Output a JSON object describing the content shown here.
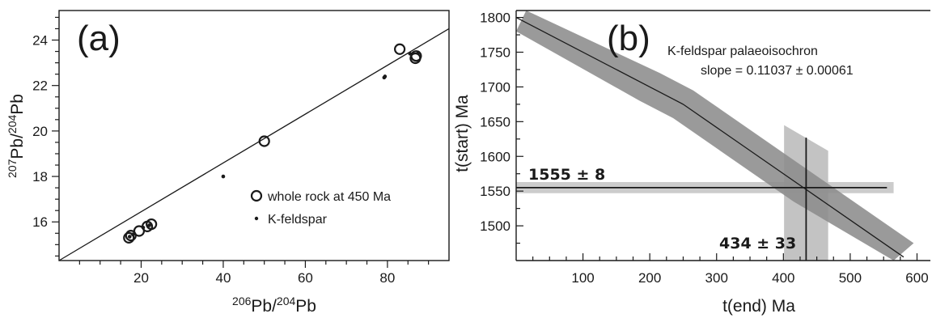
{
  "chart_data": [
    {
      "panel": "(a)",
      "type": "scatter",
      "xlabel": "206Pb/204Pb",
      "ylabel": "207Pb/204Pb",
      "xlim": [
        0,
        95
      ],
      "ylim": [
        14.3,
        25.3
      ],
      "xticks": [
        "20",
        "40",
        "60",
        "80"
      ],
      "yticks": [
        "16",
        "18",
        "20",
        "22",
        "24"
      ],
      "fit_line": {
        "x": [
          0,
          95
        ],
        "y": [
          14.3,
          24.5
        ]
      },
      "series": [
        {
          "name": "whole rock at 450 Ma",
          "marker": "open-circle",
          "x": [
            17.0,
            17.5,
            19.5,
            21.5,
            22.5,
            50.0,
            83.0,
            86.8,
            87.0
          ],
          "y": [
            15.3,
            15.4,
            15.6,
            15.8,
            15.9,
            19.55,
            23.6,
            23.2,
            23.3
          ]
        },
        {
          "name": "K-feldspar",
          "marker": "dot",
          "x": [
            17.2,
            18.0,
            20.5,
            22.0,
            40.0,
            79.2,
            79.4,
            85.5,
            87.5
          ],
          "y": [
            15.35,
            15.45,
            15.75,
            15.85,
            18.0,
            22.35,
            22.4,
            23.4,
            23.45
          ]
        }
      ],
      "legend_position": "bottom-right"
    },
    {
      "panel": "(b)",
      "type": "line",
      "xlabel": "t(end) Ma",
      "ylabel": "t(start) Ma",
      "xlim": [
        0,
        620
      ],
      "ylim": [
        1450,
        1810
      ],
      "xticks": [
        "100",
        "200",
        "300",
        "400",
        "500",
        "600"
      ],
      "yticks": [
        "1500",
        "1550",
        "1600",
        "1650",
        "1700",
        "1750",
        "1800"
      ],
      "annotation_title": "K-feldspar palaeoisochron",
      "annotation_slope": "slope = 0.11037 ± 0.00061",
      "palaeoisochron": {
        "x": [
          0,
          200,
          250,
          430,
          580
        ],
        "y": [
          1800,
          1700,
          1675,
          1555,
          1455
        ]
      },
      "band_halfwidth_t_start": 20,
      "t_start_estimate": {
        "value": 1555,
        "error": 8,
        "label": "1555 ± 8"
      },
      "t_end_estimate": {
        "value": 434,
        "error": 33,
        "label": "434 ± 33"
      }
    }
  ],
  "colors": {
    "band_dark": "#8c8c8c",
    "band_light": "#c8c8c8",
    "ink": "#1a1a1a"
  }
}
